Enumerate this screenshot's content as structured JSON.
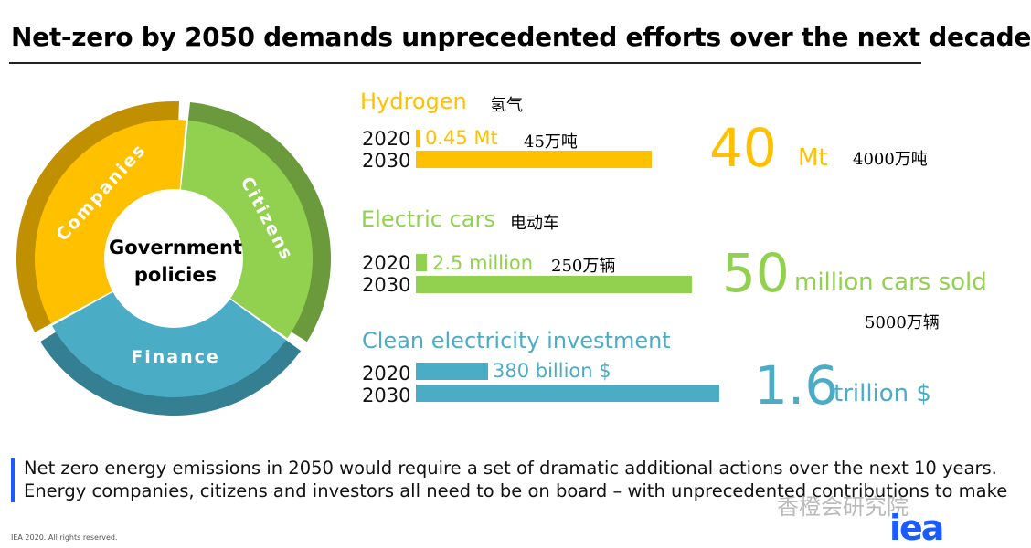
{
  "title": "Net-zero by 2050 demands unprecedented efforts over the next decade",
  "cycle": {
    "center_line1": "Government",
    "center_line2": "policies",
    "segments": [
      "Companies",
      "Citizens",
      "Finance"
    ],
    "colors": {
      "companies": "#ffc000",
      "companies_dark": "#c09000",
      "citizens": "#92d050",
      "citizens_dark": "#6a9a3c",
      "finance": "#4bacc6",
      "finance_dark": "#357f92"
    }
  },
  "sections": [
    {
      "label": "Hydrogen",
      "label_cn": "氢气",
      "color": "#ffc000",
      "y2020": "2020",
      "y2030": "2030",
      "v2020": "0.45 Mt",
      "v2020_cn": "45万吨",
      "big": "40",
      "unit": "Mt",
      "big_cn": "4000万吨"
    },
    {
      "label": "Electric cars",
      "label_cn": "电动车",
      "color": "#92d050",
      "y2020": "2020",
      "y2030": "2030",
      "v2020": "2.5 million",
      "v2020_cn": "250万辆",
      "big": "50",
      "unit": "million cars sold",
      "big_cn": "5000万辆"
    },
    {
      "label": "Clean electricity investment",
      "color": "#4bacc6",
      "y2020": "2020",
      "y2030": "2030",
      "v2020": "380 billion $",
      "big": "1.6",
      "unit": "trillion $"
    }
  ],
  "note_line1": "Net zero energy emissions in 2050 would require a set of dramatic additional actions over the next 10 years.",
  "note_line2": "Energy companies, citizens and investors all need to be on board – with unprecedented contributions to make",
  "copyright": "IEA 2020. All rights reserved.",
  "logo": "iea",
  "watermark": "香橙会研究院"
}
